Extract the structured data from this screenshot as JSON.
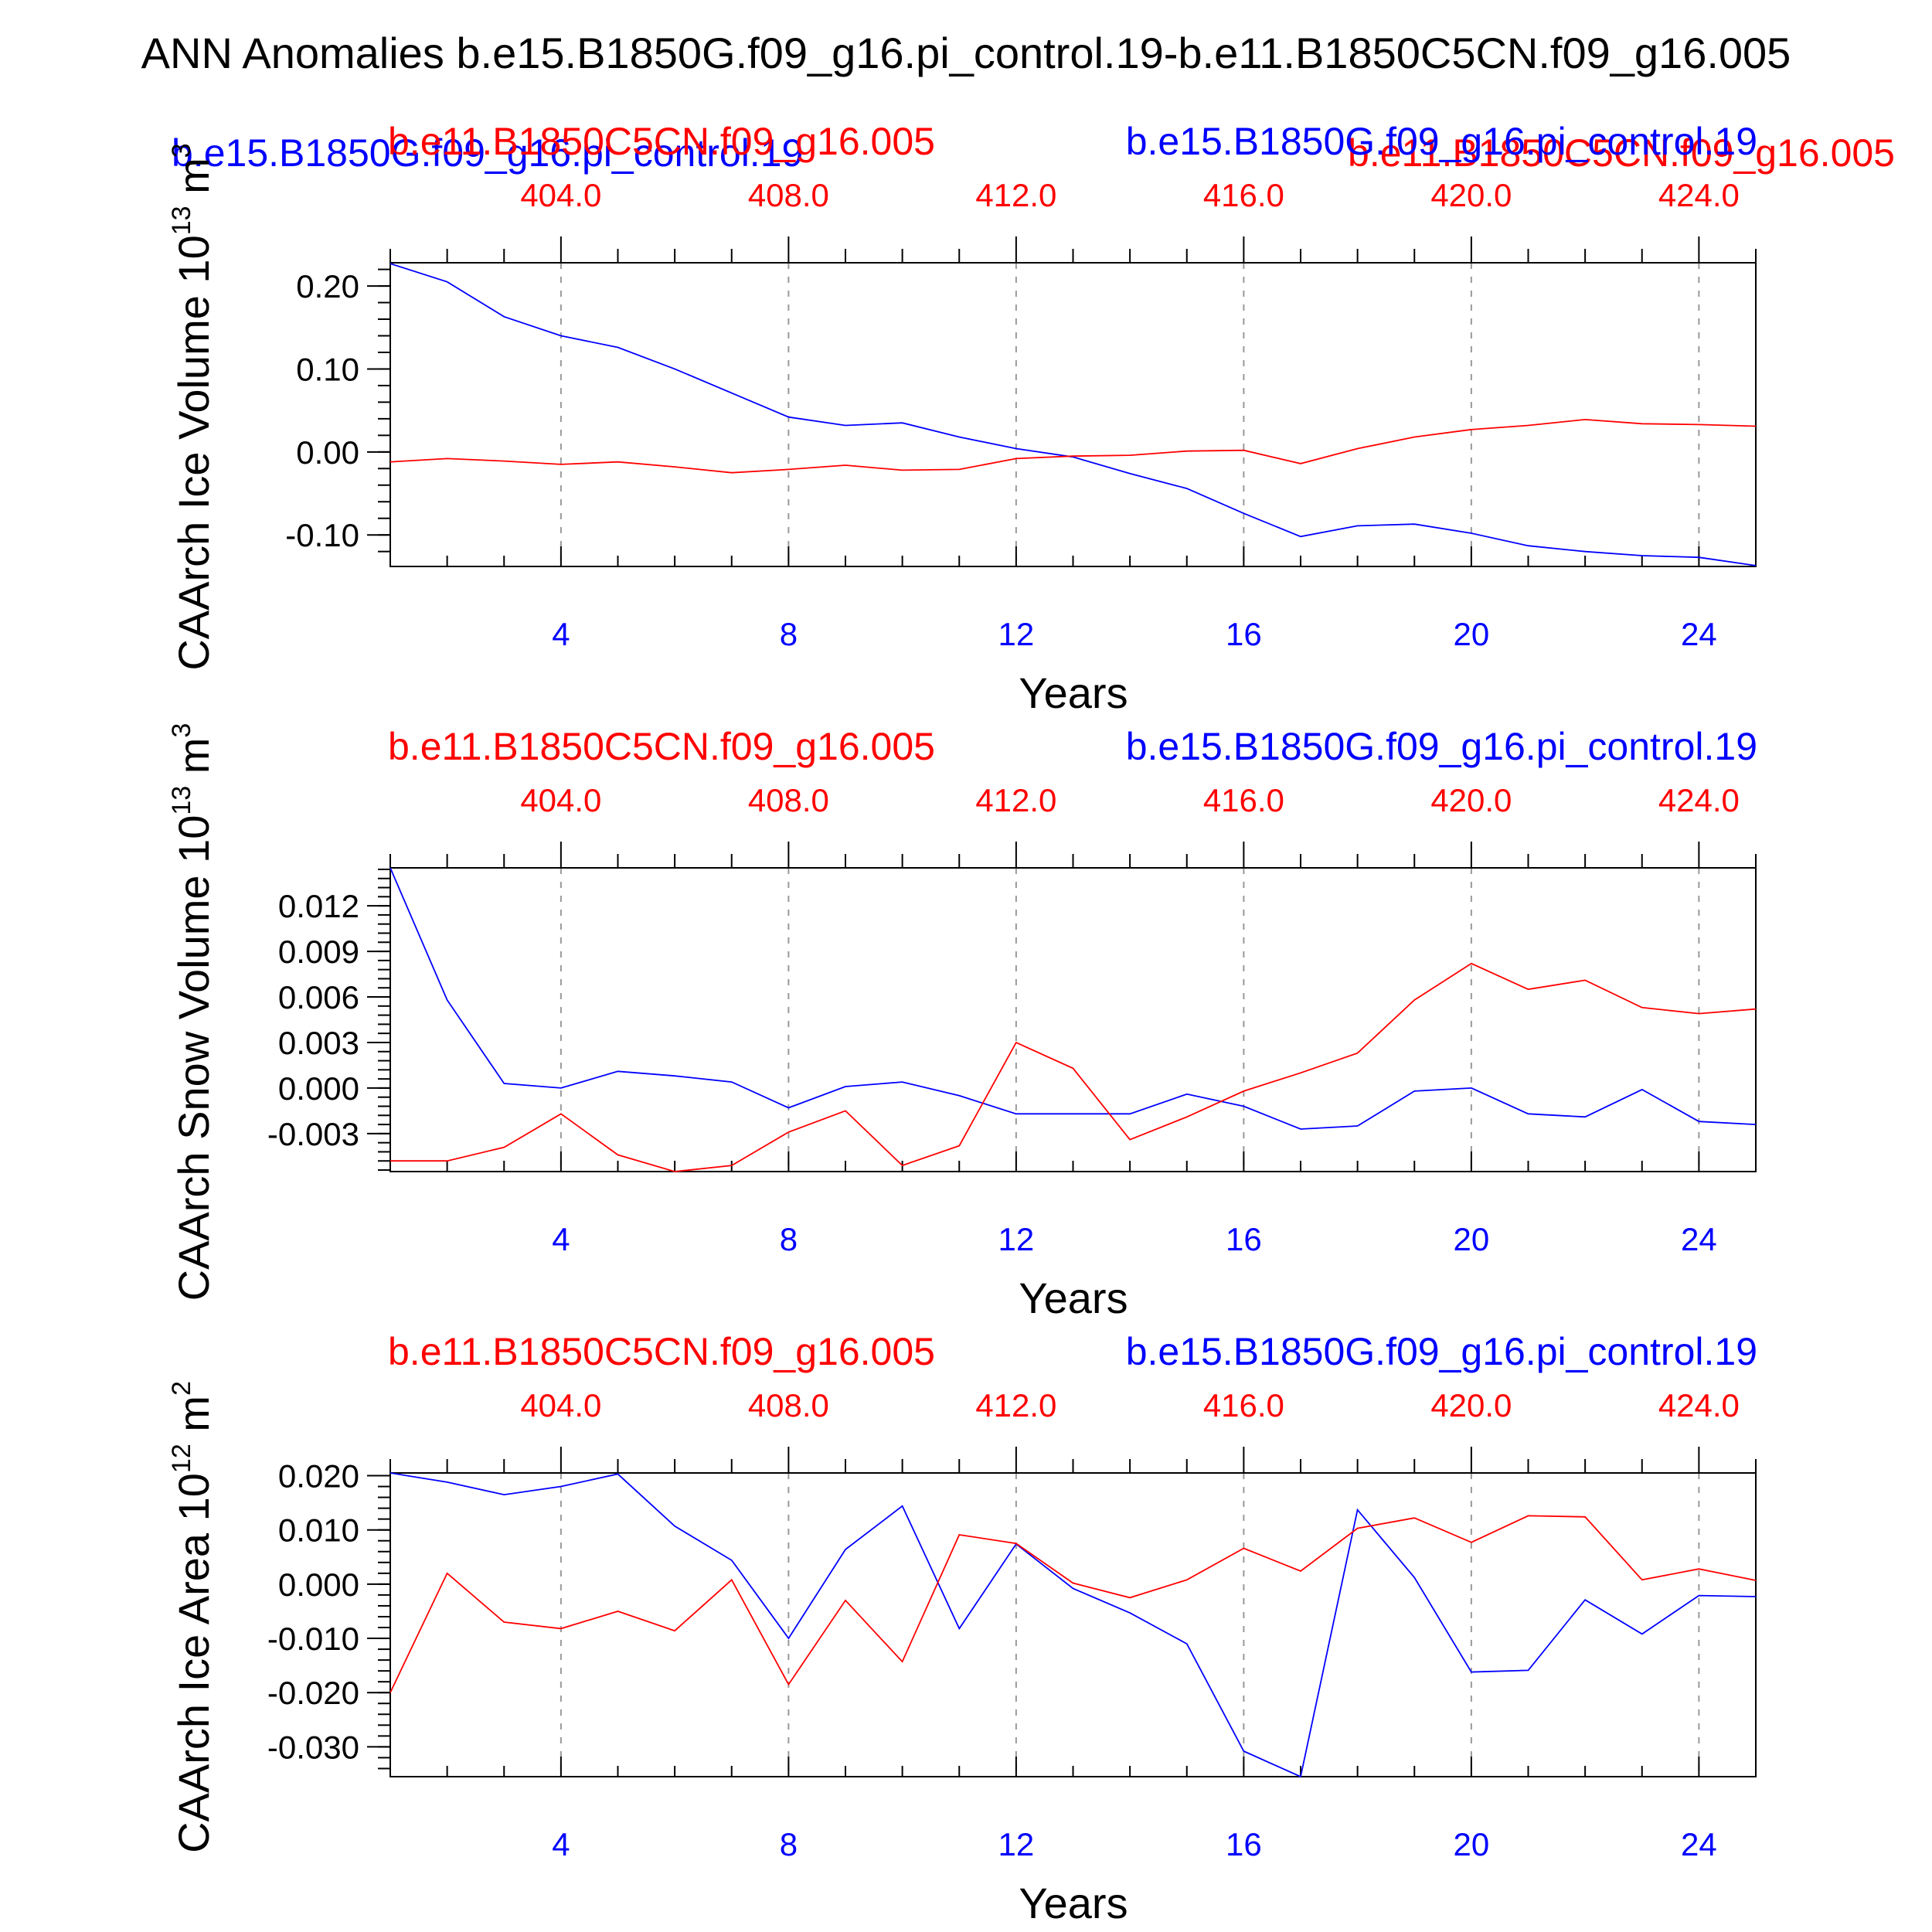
{
  "title": "ANN Anomalies b.e15.B1850G.f09_g16.pi_control.19-b.e11.B1850C5CN.f09_g16.005",
  "colors": {
    "case1": "#0000ff",
    "case2": "#ff0000",
    "axis": "#000000",
    "grid": "#999999"
  },
  "top_legend": {
    "case2_label": "b.e11.B1850C5CN.f09_g16.005",
    "case1_label": "b.e15.B1850G.f09_g16.pi_control.19",
    "case1_left_label": "b.e15.B1850G.f09_g16.pi_control.19",
    "case2_right_label": "b.e11.B1850C5CN.f09_g16.005"
  },
  "chart_data": [
    {
      "type": "line",
      "ylabel": "CAArch Ice Volume 10",
      "ylabel_exp": "13",
      "ylabel_unit": " m",
      "ylabel_unit_exp": "3",
      "xlabel": "Years",
      "top_left_label": "b.e11.B1850C5CN.f09_g16.005",
      "top_right_label": "b.e15.B1850G.f09_g16.pi_control.19",
      "xlim": [
        1,
        25
      ],
      "ylim": [
        -0.138,
        0.228
      ],
      "x_bottom_ticks": [
        4,
        8,
        12,
        16,
        20,
        24
      ],
      "x_bottom_ticklabels": [
        "4",
        "8",
        "12",
        "16",
        "20",
        "24"
      ],
      "x_top_ticks": [
        4,
        8,
        12,
        16,
        20,
        24
      ],
      "x_top_ticklabels": [
        "404.0",
        "408.0",
        "412.0",
        "416.0",
        "420.0",
        "424.0"
      ],
      "y_ticks": [
        0.2,
        0.1,
        0.0,
        -0.1
      ],
      "y_ticklabels": [
        "0.20",
        "0.10",
        "0.00",
        "-0.10"
      ],
      "grid": "vertical dashed at labeled x ticks",
      "x": [
        1,
        2,
        3,
        4,
        5,
        6,
        7,
        8,
        9,
        10,
        11,
        12,
        13,
        14,
        15,
        16,
        17,
        18,
        19,
        20,
        21,
        22,
        23,
        24,
        25
      ],
      "series": [
        {
          "name": "b.e15.B1850G.f09_g16.pi_control.19",
          "color": "#0000ff",
          "values": [
            0.227,
            0.205,
            0.163,
            0.14,
            0.126,
            0.1,
            0.071,
            0.042,
            0.032,
            0.035,
            0.018,
            0.004,
            -0.006,
            -0.026,
            -0.044,
            -0.074,
            -0.102,
            -0.089,
            -0.087,
            -0.098,
            -0.113,
            -0.12,
            -0.125,
            -0.127,
            -0.137
          ]
        },
        {
          "name": "b.e11.B1850C5CN.f09_g16.005",
          "color": "#ff0000",
          "values": [
            -0.012,
            -0.008,
            -0.011,
            -0.015,
            -0.012,
            -0.018,
            -0.025,
            -0.021,
            -0.016,
            -0.022,
            -0.021,
            -0.008,
            -0.005,
            -0.004,
            0.001,
            0.002,
            -0.014,
            0.004,
            0.018,
            0.027,
            0.032,
            0.039,
            0.034,
            0.033,
            0.031
          ]
        }
      ]
    },
    {
      "type": "line",
      "ylabel": "CAArch Snow Volume 10",
      "ylabel_exp": "13",
      "ylabel_unit": " m",
      "ylabel_unit_exp": "3",
      "xlabel": "Years",
      "top_left_label": "b.e11.B1850C5CN.f09_g16.005",
      "top_right_label": "b.e15.B1850G.f09_g16.pi_control.19",
      "xlim": [
        1,
        25
      ],
      "ylim": [
        -0.0055,
        0.0145
      ],
      "x_bottom_ticks": [
        4,
        8,
        12,
        16,
        20,
        24
      ],
      "x_bottom_ticklabels": [
        "4",
        "8",
        "12",
        "16",
        "20",
        "24"
      ],
      "x_top_ticks": [
        4,
        8,
        12,
        16,
        20,
        24
      ],
      "x_top_ticklabels": [
        "404.0",
        "408.0",
        "412.0",
        "416.0",
        "420.0",
        "424.0"
      ],
      "y_ticks": [
        0.012,
        0.009,
        0.006,
        0.003,
        0.0,
        -0.003
      ],
      "y_ticklabels": [
        "0.012",
        "0.009",
        "0.006",
        "0.003",
        "0.000",
        "-0.003"
      ],
      "grid": "vertical dashed at labeled x ticks",
      "x": [
        1,
        2,
        3,
        4,
        5,
        6,
        7,
        8,
        9,
        10,
        11,
        12,
        13,
        14,
        15,
        16,
        17,
        18,
        19,
        20,
        21,
        22,
        23,
        24,
        25
      ],
      "series": [
        {
          "name": "b.e15.B1850G.f09_g16.pi_control.19",
          "color": "#0000ff",
          "values": [
            0.0145,
            0.0058,
            0.0003,
            0.0,
            0.0011,
            0.0008,
            0.0004,
            -0.0013,
            0.0001,
            0.0004,
            -0.0005,
            -0.0017,
            -0.0017,
            -0.0017,
            -0.0004,
            -0.0012,
            -0.0027,
            -0.0025,
            -0.0002,
            0.0,
            -0.0017,
            -0.0019,
            -0.0001,
            -0.0022,
            -0.0024
          ]
        },
        {
          "name": "b.e11.B1850C5CN.f09_g16.005",
          "color": "#ff0000",
          "values": [
            -0.0048,
            -0.0048,
            -0.0039,
            -0.0017,
            -0.0044,
            -0.0055,
            -0.0051,
            -0.0029,
            -0.0015,
            -0.0051,
            -0.0038,
            0.003,
            0.0013,
            -0.0034,
            -0.0019,
            -0.0002,
            0.001,
            0.0023,
            0.0058,
            0.0082,
            0.0065,
            0.0071,
            0.0053,
            0.0049,
            0.0052
          ]
        }
      ]
    },
    {
      "type": "line",
      "ylabel": "CAArch Ice Area 10",
      "ylabel_exp": "12",
      "ylabel_unit": " m",
      "ylabel_unit_exp": "2",
      "xlabel": "Years",
      "top_left_label": "b.e11.B1850C5CN.f09_g16.005",
      "top_right_label": "b.e15.B1850G.f09_g16.pi_control.19",
      "xlim": [
        1,
        25
      ],
      "ylim": [
        -0.0355,
        0.0205
      ],
      "x_bottom_ticks": [
        4,
        8,
        12,
        16,
        20,
        24
      ],
      "x_bottom_ticklabels": [
        "4",
        "8",
        "12",
        "16",
        "20",
        "24"
      ],
      "x_top_ticks": [
        4,
        8,
        12,
        16,
        20,
        24
      ],
      "x_top_ticklabels": [
        "404.0",
        "408.0",
        "412.0",
        "416.0",
        "420.0",
        "424.0"
      ],
      "y_ticks": [
        0.02,
        0.01,
        0.0,
        -0.01,
        -0.02,
        -0.03
      ],
      "y_ticklabels": [
        "0.020",
        "0.010",
        "0.000",
        "-0.010",
        "-0.020",
        "-0.030"
      ],
      "grid": "vertical dashed at labeled x ticks",
      "x": [
        1,
        2,
        3,
        4,
        5,
        6,
        7,
        8,
        9,
        10,
        11,
        12,
        13,
        14,
        15,
        16,
        17,
        18,
        19,
        20,
        21,
        22,
        23,
        24,
        25
      ],
      "series": [
        {
          "name": "b.e15.B1850G.f09_g16.pi_control.19",
          "color": "#0000ff",
          "values": [
            0.0205,
            0.0188,
            0.0165,
            0.018,
            0.0203,
            0.0107,
            0.0044,
            -0.01,
            0.0064,
            0.0144,
            -0.0082,
            0.0074,
            -0.0008,
            -0.0053,
            -0.011,
            -0.0308,
            -0.0355,
            0.0137,
            0.0012,
            -0.0162,
            -0.0159,
            -0.0029,
            -0.0092,
            -0.0021,
            -0.0023
          ]
        },
        {
          "name": "b.e11.B1850C5CN.f09_g16.005",
          "color": "#ff0000",
          "values": [
            -0.02,
            0.002,
            -0.007,
            -0.0082,
            -0.005,
            -0.0086,
            0.0008,
            -0.0185,
            -0.003,
            -0.0143,
            0.0091,
            0.0075,
            0.0002,
            -0.0025,
            0.0008,
            0.0066,
            0.0024,
            0.0103,
            0.0122,
            0.0077,
            0.0126,
            0.0124,
            0.0008,
            0.0028,
            0.0007
          ]
        }
      ]
    }
  ]
}
